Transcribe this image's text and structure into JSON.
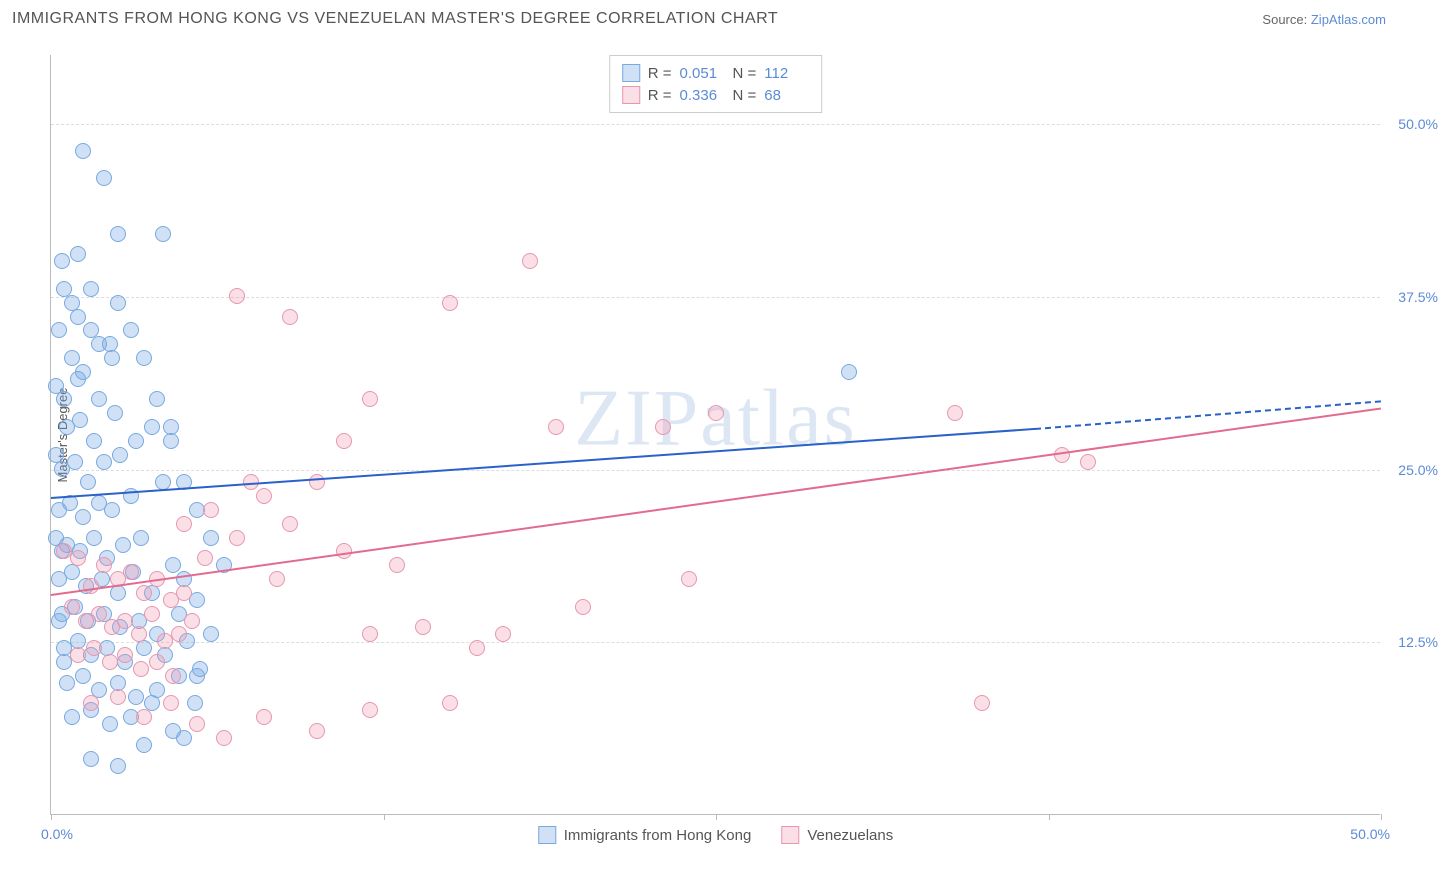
{
  "title": "IMMIGRANTS FROM HONG KONG VS VENEZUELAN MASTER'S DEGREE CORRELATION CHART",
  "source_label": "Source:",
  "source_link": "ZipAtlas.com",
  "watermark": "ZIPatlas",
  "ylabel": "Master's Degree",
  "xaxis": {
    "min": 0,
    "max": 50,
    "label_min": "0.0%",
    "label_max": "50.0%",
    "ticks_pct": [
      0,
      12.5,
      25,
      37.5,
      50
    ]
  },
  "yaxis": {
    "min": 0,
    "max": 55,
    "ticks": [
      12.5,
      25,
      37.5,
      50
    ],
    "tick_labels": [
      "12.5%",
      "25.0%",
      "37.5%",
      "50.0%"
    ]
  },
  "series": {
    "a": {
      "name": "Immigrants from Hong Kong",
      "color_fill": "rgba(120,170,230,0.35)",
      "color_stroke": "#79a9e0",
      "r": 0.051,
      "n": 112,
      "trend": {
        "x1": 0,
        "y1": 23,
        "x2": 37,
        "y2": 28,
        "color": "#2a62c9",
        "dash_from_x": 37,
        "dash_to_x": 50,
        "dash_y2": 30
      }
    },
    "b": {
      "name": "Venezuelans",
      "color_fill": "rgba(240,150,175,0.30)",
      "color_stroke": "#e797af",
      "r": 0.336,
      "n": 68,
      "trend": {
        "x1": 0,
        "y1": 16,
        "x2": 50,
        "y2": 29.5,
        "color": "#e26b8f"
      }
    }
  },
  "points_a": [
    [
      0.5,
      38
    ],
    [
      1,
      36
    ],
    [
      1.2,
      48
    ],
    [
      2,
      46
    ],
    [
      1.5,
      38
    ],
    [
      2.5,
      42
    ],
    [
      0.8,
      33
    ],
    [
      1.2,
      32
    ],
    [
      1.8,
      30
    ],
    [
      2.2,
      34
    ],
    [
      0.6,
      28
    ],
    [
      1.1,
      28.5
    ],
    [
      1.6,
      27
    ],
    [
      2.4,
      29
    ],
    [
      0.4,
      25
    ],
    [
      0.9,
      25.5
    ],
    [
      1.4,
      24
    ],
    [
      2,
      25.5
    ],
    [
      2.6,
      26
    ],
    [
      3.2,
      27
    ],
    [
      0.3,
      22
    ],
    [
      0.7,
      22.5
    ],
    [
      1.2,
      21.5
    ],
    [
      1.8,
      22.5
    ],
    [
      2.3,
      22
    ],
    [
      3,
      23
    ],
    [
      3.8,
      28
    ],
    [
      4.5,
      28
    ],
    [
      0.2,
      20
    ],
    [
      0.6,
      19.5
    ],
    [
      1.1,
      19
    ],
    [
      1.6,
      20
    ],
    [
      2.1,
      18.5
    ],
    [
      2.7,
      19.5
    ],
    [
      3.4,
      20
    ],
    [
      4.2,
      24
    ],
    [
      5,
      24
    ],
    [
      0.3,
      17
    ],
    [
      0.8,
      17.5
    ],
    [
      1.3,
      16.5
    ],
    [
      1.9,
      17
    ],
    [
      2.5,
      16
    ],
    [
      3.1,
      17.5
    ],
    [
      3.8,
      16
    ],
    [
      4.6,
      18
    ],
    [
      0.4,
      14.5
    ],
    [
      0.9,
      15
    ],
    [
      1.4,
      14
    ],
    [
      2,
      14.5
    ],
    [
      2.6,
      13.5
    ],
    [
      3.3,
      14
    ],
    [
      4,
      13
    ],
    [
      4.8,
      14.5
    ],
    [
      5.5,
      15.5
    ],
    [
      0.5,
      12
    ],
    [
      1,
      12.5
    ],
    [
      1.5,
      11.5
    ],
    [
      2.1,
      12
    ],
    [
      2.8,
      11
    ],
    [
      3.5,
      12
    ],
    [
      4.3,
      11.5
    ],
    [
      5.1,
      12.5
    ],
    [
      0.6,
      9.5
    ],
    [
      1.2,
      10
    ],
    [
      1.8,
      9
    ],
    [
      2.5,
      9.5
    ],
    [
      3.2,
      8.5
    ],
    [
      4,
      9
    ],
    [
      4.8,
      10
    ],
    [
      5.6,
      10.5
    ],
    [
      0.8,
      7
    ],
    [
      1.5,
      7.5
    ],
    [
      2.2,
      6.5
    ],
    [
      3,
      7
    ],
    [
      3.8,
      8
    ],
    [
      4.6,
      6
    ],
    [
      5.4,
      8
    ],
    [
      1.5,
      4
    ],
    [
      2.5,
      3.5
    ],
    [
      3.5,
      5
    ],
    [
      5,
      5.5
    ],
    [
      0.2,
      31
    ],
    [
      0.5,
      30
    ],
    [
      1,
      31.5
    ],
    [
      30,
      32
    ],
    [
      4.2,
      42
    ],
    [
      0.3,
      35
    ],
    [
      0.8,
      37
    ],
    [
      1.5,
      35
    ],
    [
      0.4,
      40
    ],
    [
      1,
      40.5
    ],
    [
      2.5,
      37
    ],
    [
      3,
      35
    ],
    [
      3.5,
      33
    ],
    [
      4,
      30
    ],
    [
      4.5,
      27
    ],
    [
      5.5,
      22
    ],
    [
      6,
      20
    ],
    [
      5,
      17
    ],
    [
      6.5,
      18
    ],
    [
      6,
      13
    ],
    [
      5.5,
      10
    ],
    [
      0.2,
      26
    ],
    [
      0.4,
      19
    ],
    [
      0.3,
      14
    ],
    [
      0.5,
      11
    ],
    [
      1.8,
      34
    ],
    [
      2.3,
      33
    ]
  ],
  "points_b": [
    [
      0.5,
      19
    ],
    [
      1,
      18.5
    ],
    [
      1.5,
      16.5
    ],
    [
      2,
      18
    ],
    [
      2.5,
      17
    ],
    [
      3,
      17.5
    ],
    [
      3.5,
      16
    ],
    [
      4,
      17
    ],
    [
      4.5,
      15.5
    ],
    [
      5,
      16
    ],
    [
      0.8,
      15
    ],
    [
      1.3,
      14
    ],
    [
      1.8,
      14.5
    ],
    [
      2.3,
      13.5
    ],
    [
      2.8,
      14
    ],
    [
      3.3,
      13
    ],
    [
      3.8,
      14.5
    ],
    [
      4.3,
      12.5
    ],
    [
      4.8,
      13
    ],
    [
      5.3,
      14
    ],
    [
      1,
      11.5
    ],
    [
      1.6,
      12
    ],
    [
      2.2,
      11
    ],
    [
      2.8,
      11.5
    ],
    [
      3.4,
      10.5
    ],
    [
      4,
      11
    ],
    [
      4.6,
      10
    ],
    [
      1.5,
      8
    ],
    [
      2.5,
      8.5
    ],
    [
      3.5,
      7
    ],
    [
      4.5,
      8
    ],
    [
      5.5,
      6.5
    ],
    [
      5,
      21
    ],
    [
      6,
      22
    ],
    [
      7,
      20
    ],
    [
      8,
      23
    ],
    [
      9,
      21
    ],
    [
      10,
      24
    ],
    [
      7,
      37.5
    ],
    [
      9,
      36
    ],
    [
      12,
      30
    ],
    [
      15,
      37
    ],
    [
      18,
      40
    ],
    [
      19,
      28
    ],
    [
      11,
      19
    ],
    [
      13,
      18
    ],
    [
      12,
      13
    ],
    [
      14,
      13.5
    ],
    [
      16,
      12
    ],
    [
      15,
      8
    ],
    [
      17,
      13
    ],
    [
      20,
      15
    ],
    [
      23,
      28
    ],
    [
      24,
      17
    ],
    [
      25,
      29
    ],
    [
      34,
      29
    ],
    [
      35,
      8
    ],
    [
      38,
      26
    ],
    [
      39,
      25.5
    ],
    [
      6.5,
      5.5
    ],
    [
      8,
      7
    ],
    [
      10,
      6
    ],
    [
      12,
      7.5
    ],
    [
      5.8,
      18.5
    ],
    [
      7.5,
      24
    ],
    [
      8.5,
      17
    ],
    [
      11,
      27
    ]
  ]
}
